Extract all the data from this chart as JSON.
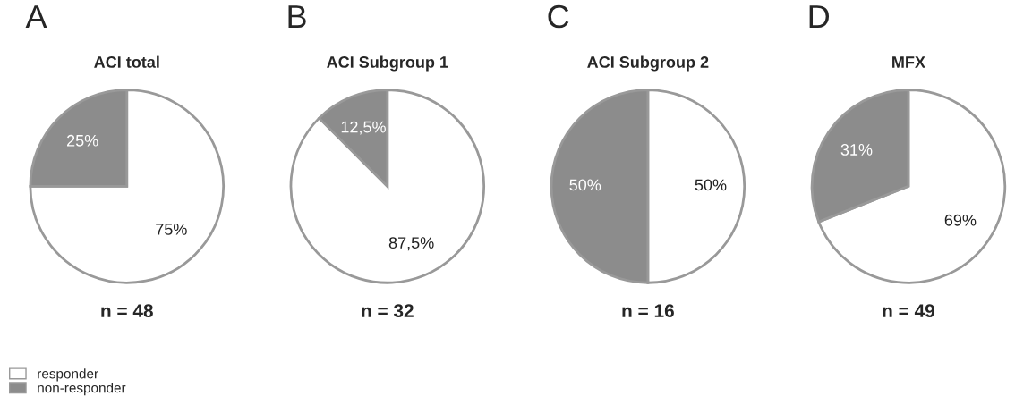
{
  "chart_data": [
    {
      "type": "pie",
      "title": "ACI total",
      "categories": [
        "responder",
        "non-responder"
      ],
      "values": [
        75,
        25
      ],
      "colors": [
        "#ffffff",
        "#8c8c8c"
      ],
      "value_labels": [
        "75%",
        "25%"
      ],
      "annotations": [
        "A",
        "n = 48"
      ],
      "legend": "bottom left"
    },
    {
      "type": "pie",
      "title": "ACI Subgroup 1",
      "categories": [
        null,
        null
      ],
      "values": [
        87.5,
        12.5
      ],
      "colors": [
        "#ffffff",
        "#8c8c8c"
      ],
      "value_labels": [
        "87,5%",
        "12,5%"
      ],
      "annotations": [
        "B",
        "n = 32"
      ]
    },
    {
      "type": "pie",
      "title": "ACI Subgroup 2",
      "categories": [
        null,
        null
      ],
      "values": [
        50,
        50
      ],
      "colors": [
        "#ffffff",
        "#8c8c8c"
      ],
      "value_labels": [
        "50%",
        "50%"
      ],
      "annotations": [
        "C",
        "n = 16"
      ]
    },
    {
      "type": "pie",
      "title": "MFX",
      "categories": [
        null,
        null
      ],
      "values": [
        69,
        31
      ],
      "colors": [
        "#ffffff",
        "#8c8c8c"
      ],
      "value_labels": [
        "69%",
        "31%"
      ],
      "annotations": [
        "D",
        "n = 49"
      ]
    }
  ]
}
